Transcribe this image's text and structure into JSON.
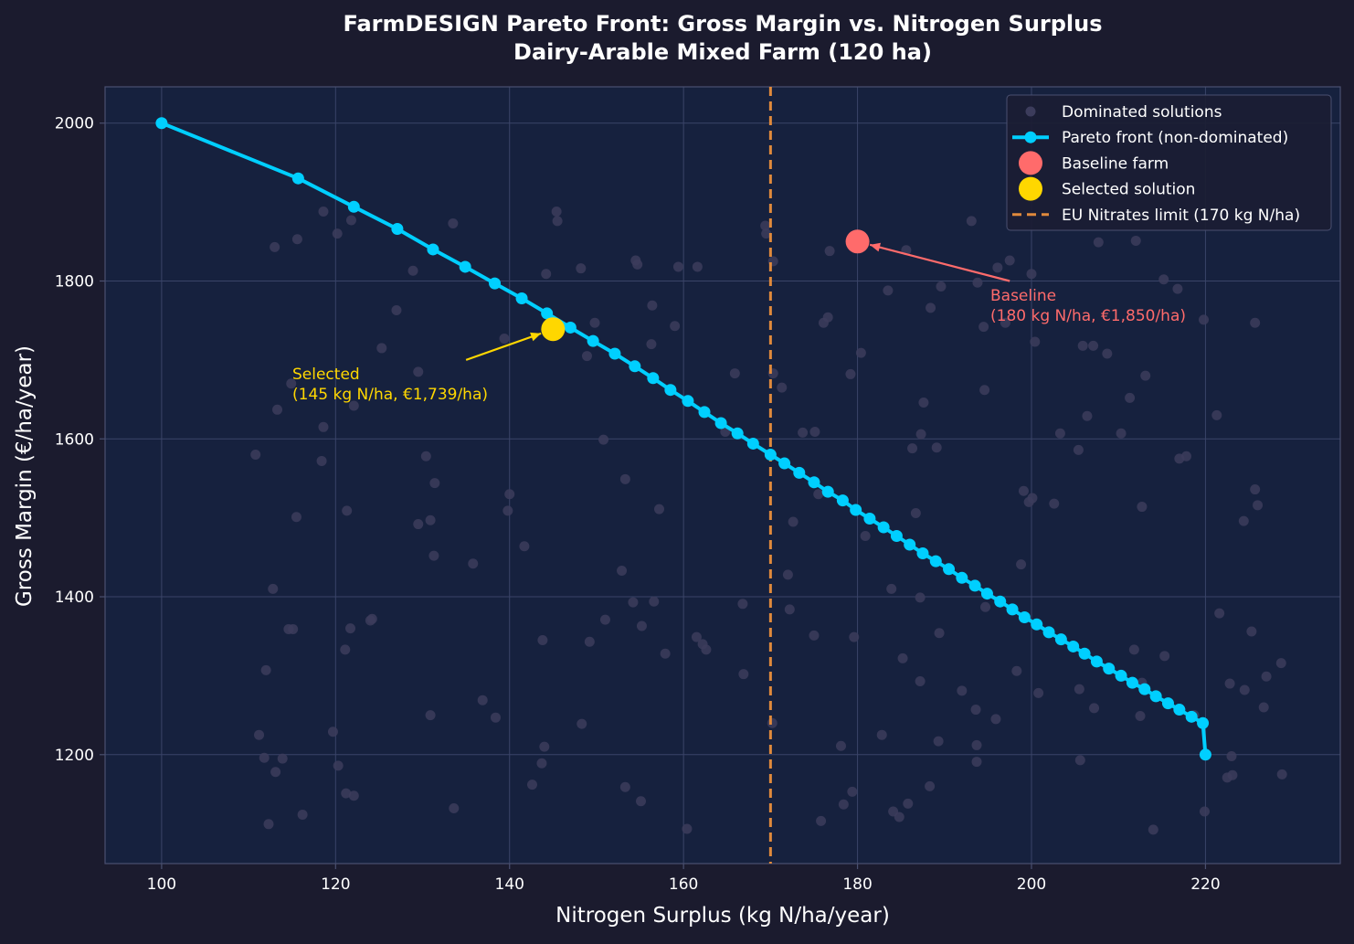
{
  "colors": {
    "figure_bg": "#1b1b2e",
    "plot_bg": "#16213e",
    "axes_edge": "#4a5070",
    "grid": "#3a4468",
    "text": "#ffffff",
    "dominated": "#3c3c5c",
    "pareto": "#00cfff",
    "baseline": "#ff6b6b",
    "selected": "#ffd700",
    "limit": "#e08a3c",
    "legend_bg": "#1b1d33",
    "legend_edge": "#4a5070"
  },
  "chart_data": {
    "type": "scatter",
    "title": "FarmDESIGN Pareto Front: Gross Margin vs. Nitrogen Surplus",
    "subtitle": "Dairy-Arable Mixed Farm (120 ha)",
    "xlabel": "Nitrogen Surplus (kg N/ha/year)",
    "ylabel": "Gross Margin (€/ha/year)",
    "xlim": [
      93.5,
      235.5
    ],
    "ylim": [
      1062,
      2046
    ],
    "xticks": [
      100,
      120,
      140,
      160,
      180,
      200,
      220
    ],
    "yticks": [
      1200,
      1400,
      1600,
      1800,
      2000
    ],
    "grid": true,
    "legend_position": "top-right",
    "legend": [
      {
        "label": "Dominated solutions",
        "symbol": "dominated"
      },
      {
        "label": "Pareto front (non-dominated)",
        "symbol": "pareto"
      },
      {
        "label": "Baseline farm",
        "symbol": "baseline"
      },
      {
        "label": "Selected solution",
        "symbol": "selected"
      },
      {
        "label": "EU Nitrates limit (170 kg N/ha)",
        "symbol": "limit"
      }
    ],
    "series": [
      {
        "name": "Pareto front (non-dominated)",
        "points": [
          [
            100.0,
            2000
          ],
          [
            115.7,
            1930
          ],
          [
            122.1,
            1894
          ],
          [
            127.1,
            1866
          ],
          [
            131.2,
            1840
          ],
          [
            134.9,
            1818
          ],
          [
            138.3,
            1797
          ],
          [
            141.4,
            1778
          ],
          [
            144.3,
            1759
          ],
          [
            147.0,
            1741
          ],
          [
            149.6,
            1724
          ],
          [
            152.1,
            1708
          ],
          [
            154.4,
            1692
          ],
          [
            156.5,
            1677
          ],
          [
            158.5,
            1662
          ],
          [
            160.5,
            1648
          ],
          [
            162.4,
            1634
          ],
          [
            164.3,
            1620
          ],
          [
            166.2,
            1607
          ],
          [
            168.0,
            1594
          ],
          [
            170.0,
            1580
          ],
          [
            171.6,
            1569
          ],
          [
            173.3,
            1557
          ],
          [
            175.0,
            1545
          ],
          [
            176.6,
            1533
          ],
          [
            178.3,
            1522
          ],
          [
            179.8,
            1510
          ],
          [
            181.4,
            1499
          ],
          [
            183.0,
            1488
          ],
          [
            184.5,
            1477
          ],
          [
            186.0,
            1466
          ],
          [
            187.5,
            1455
          ],
          [
            189.0,
            1445
          ],
          [
            190.5,
            1435
          ],
          [
            192.0,
            1424
          ],
          [
            193.5,
            1414
          ],
          [
            194.9,
            1404
          ],
          [
            196.4,
            1394
          ],
          [
            197.8,
            1384
          ],
          [
            199.2,
            1374
          ],
          [
            200.6,
            1365
          ],
          [
            202.0,
            1355
          ],
          [
            203.4,
            1346
          ],
          [
            204.8,
            1337
          ],
          [
            206.1,
            1328
          ],
          [
            207.5,
            1318
          ],
          [
            208.9,
            1309
          ],
          [
            210.3,
            1300
          ],
          [
            211.6,
            1291
          ],
          [
            213.0,
            1283
          ],
          [
            214.3,
            1274
          ],
          [
            215.7,
            1265
          ],
          [
            217.0,
            1257
          ],
          [
            218.4,
            1248
          ],
          [
            219.7,
            1240
          ],
          [
            220.0,
            1200
          ]
        ]
      },
      {
        "name": "Dominated solutions",
        "points": [
          [
            110.8,
            1580
          ],
          [
            111.2,
            1225
          ],
          [
            111.8,
            1196
          ],
          [
            112.0,
            1307
          ],
          [
            112.3,
            1112
          ],
          [
            113.0,
            1843
          ],
          [
            112.8,
            1410
          ],
          [
            113.1,
            1178
          ],
          [
            113.3,
            1637
          ],
          [
            113.9,
            1195
          ],
          [
            114.6,
            1359
          ],
          [
            114.9,
            1670
          ],
          [
            115.1,
            1359
          ],
          [
            115.5,
            1501
          ],
          [
            115.6,
            1853
          ],
          [
            116.2,
            1124
          ],
          [
            118.4,
            1572
          ],
          [
            118.6,
            1888
          ],
          [
            118.6,
            1615
          ],
          [
            119.7,
            1229
          ],
          [
            120.2,
            1860
          ],
          [
            120.3,
            1186
          ],
          [
            121.1,
            1333
          ],
          [
            121.2,
            1151
          ],
          [
            121.3,
            1509
          ],
          [
            121.7,
            1360
          ],
          [
            121.8,
            1877
          ],
          [
            122.1,
            1148
          ],
          [
            122.1,
            1642
          ],
          [
            124.0,
            1370
          ],
          [
            124.2,
            1372
          ],
          [
            125.3,
            1715
          ],
          [
            127.0,
            1763
          ],
          [
            128.9,
            1813
          ],
          [
            129.5,
            1492
          ],
          [
            129.5,
            1685
          ],
          [
            130.4,
            1578
          ],
          [
            130.9,
            1250
          ],
          [
            130.9,
            1497
          ],
          [
            131.3,
            1452
          ],
          [
            131.4,
            1544
          ],
          [
            133.5,
            1873
          ],
          [
            133.6,
            1132
          ],
          [
            135.8,
            1442
          ],
          [
            136.9,
            1269
          ],
          [
            138.4,
            1247
          ],
          [
            139.4,
            1727
          ],
          [
            139.8,
            1509
          ],
          [
            140.0,
            1530
          ],
          [
            141.7,
            1464
          ],
          [
            142.6,
            1162
          ],
          [
            143.7,
            1189
          ],
          [
            143.8,
            1345
          ],
          [
            144.0,
            1210
          ],
          [
            144.2,
            1809
          ],
          [
            145.4,
            1888
          ],
          [
            145.5,
            1876
          ],
          [
            148.2,
            1816
          ],
          [
            148.3,
            1239
          ],
          [
            148.9,
            1705
          ],
          [
            149.2,
            1343
          ],
          [
            149.8,
            1747
          ],
          [
            150.8,
            1599
          ],
          [
            151.0,
            1371
          ],
          [
            152.9,
            1433
          ],
          [
            153.3,
            1549
          ],
          [
            153.3,
            1159
          ],
          [
            154.2,
            1393
          ],
          [
            154.5,
            1826
          ],
          [
            154.7,
            1821
          ],
          [
            155.1,
            1141
          ],
          [
            155.2,
            1363
          ],
          [
            156.3,
            1720
          ],
          [
            156.4,
            1769
          ],
          [
            156.6,
            1394
          ],
          [
            157.2,
            1511
          ],
          [
            157.9,
            1328
          ],
          [
            159.0,
            1743
          ],
          [
            159.4,
            1818
          ],
          [
            160.4,
            1106
          ],
          [
            161.5,
            1349
          ],
          [
            161.6,
            1818
          ],
          [
            162.2,
            1340
          ],
          [
            162.6,
            1333
          ],
          [
            164.8,
            1609
          ],
          [
            165.9,
            1683
          ],
          [
            166.8,
            1391
          ],
          [
            166.9,
            1302
          ],
          [
            169.4,
            1870
          ],
          [
            169.5,
            1860
          ],
          [
            170.2,
            1240
          ],
          [
            170.3,
            1825
          ],
          [
            170.3,
            1683
          ],
          [
            171.3,
            1665
          ],
          [
            172.0,
            1428
          ],
          [
            172.2,
            1384
          ],
          [
            172.6,
            1495
          ],
          [
            173.7,
            1608
          ],
          [
            175.0,
            1351
          ],
          [
            175.1,
            1609
          ],
          [
            175.5,
            1530
          ],
          [
            175.8,
            1116
          ],
          [
            176.1,
            1747
          ],
          [
            176.6,
            1754
          ],
          [
            176.8,
            1838
          ],
          [
            178.1,
            1211
          ],
          [
            178.4,
            1137
          ],
          [
            179.2,
            1682
          ],
          [
            179.4,
            1153
          ],
          [
            179.6,
            1349
          ],
          [
            180.4,
            1709
          ],
          [
            180.9,
            1477
          ],
          [
            182.8,
            1225
          ],
          [
            183.5,
            1788
          ],
          [
            183.9,
            1410
          ],
          [
            184.1,
            1128
          ],
          [
            184.8,
            1121
          ],
          [
            185.2,
            1322
          ],
          [
            185.6,
            1839
          ],
          [
            185.8,
            1138
          ],
          [
            186.3,
            1588
          ],
          [
            186.7,
            1506
          ],
          [
            187.2,
            1399
          ],
          [
            187.2,
            1293
          ],
          [
            187.3,
            1606
          ],
          [
            187.6,
            1646
          ],
          [
            188.3,
            1160
          ],
          [
            188.4,
            1766
          ],
          [
            189.1,
            1589
          ],
          [
            189.3,
            1217
          ],
          [
            189.4,
            1354
          ],
          [
            189.6,
            1793
          ],
          [
            192.0,
            1281
          ],
          [
            193.1,
            1876
          ],
          [
            193.6,
            1257
          ],
          [
            193.7,
            1191
          ],
          [
            193.7,
            1212
          ],
          [
            193.8,
            1798
          ],
          [
            194.5,
            1742
          ],
          [
            194.6,
            1662
          ],
          [
            194.7,
            1387
          ],
          [
            195.9,
            1245
          ],
          [
            196.1,
            1817
          ],
          [
            197.0,
            1747
          ],
          [
            197.5,
            1826
          ],
          [
            198.3,
            1306
          ],
          [
            198.8,
            1441
          ],
          [
            199.1,
            1534
          ],
          [
            199.7,
            1520
          ],
          [
            200.0,
            1809
          ],
          [
            200.1,
            1525
          ],
          [
            200.4,
            1723
          ],
          [
            200.8,
            1278
          ],
          [
            202.6,
            1518
          ],
          [
            203.3,
            1607
          ],
          [
            205.4,
            1586
          ],
          [
            205.5,
            1283
          ],
          [
            205.6,
            1193
          ],
          [
            205.9,
            1718
          ],
          [
            206.4,
            1629
          ],
          [
            207.1,
            1718
          ],
          [
            207.2,
            1259
          ],
          [
            207.7,
            1849
          ],
          [
            208.7,
            1708
          ],
          [
            210.3,
            1607
          ],
          [
            211.3,
            1652
          ],
          [
            211.8,
            1333
          ],
          [
            212.0,
            1851
          ],
          [
            212.5,
            1249
          ],
          [
            212.7,
            1514
          ],
          [
            212.7,
            1291
          ],
          [
            213.1,
            1680
          ],
          [
            214.0,
            1105
          ],
          [
            215.2,
            1802
          ],
          [
            215.3,
            1325
          ],
          [
            216.8,
            1790
          ],
          [
            217.0,
            1575
          ],
          [
            217.8,
            1578
          ],
          [
            218.7,
            1250
          ],
          [
            219.8,
            1751
          ],
          [
            219.9,
            1128
          ],
          [
            221.3,
            1630
          ],
          [
            221.6,
            1379
          ],
          [
            222.5,
            1171
          ],
          [
            222.8,
            1290
          ],
          [
            223.0,
            1198
          ],
          [
            223.1,
            1174
          ],
          [
            224.4,
            1496
          ],
          [
            224.5,
            1282
          ],
          [
            225.3,
            1356
          ],
          [
            225.7,
            1747
          ],
          [
            225.7,
            1536
          ],
          [
            226.0,
            1516
          ],
          [
            226.7,
            1260
          ],
          [
            227.0,
            1299
          ],
          [
            228.7,
            1316
          ],
          [
            228.8,
            1175
          ]
        ]
      },
      {
        "name": "Baseline farm",
        "points": [
          [
            180,
            1850
          ]
        ]
      },
      {
        "name": "Selected solution",
        "points": [
          [
            145,
            1739
          ]
        ]
      },
      {
        "name": "EU Nitrates limit (170 kg N/ha)",
        "x": 170
      }
    ],
    "annotations": [
      {
        "id": "selected",
        "lines": [
          "Selected",
          "(145 kg N/ha, €1,739/ha)"
        ],
        "point": [
          145,
          1739
        ],
        "text_at": [
          135,
          1700
        ],
        "color_key": "selected"
      },
      {
        "id": "baseline",
        "lines": [
          "Baseline",
          "(180 kg N/ha, €1,850/ha)"
        ],
        "point": [
          180,
          1850
        ],
        "text_at": [
          197.5,
          1800
        ],
        "color_key": "baseline"
      }
    ]
  }
}
